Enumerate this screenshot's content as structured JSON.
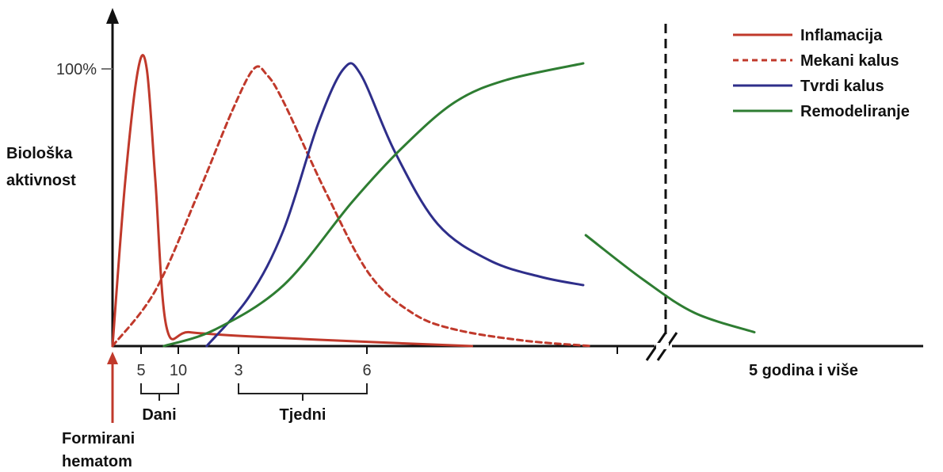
{
  "chart_data": {
    "type": "line",
    "title": "",
    "ylabel_lines": [
      "Biološka",
      "aktivnost"
    ],
    "y_max_label": "100%",
    "ylim": [
      0,
      100
    ],
    "x_ticks_days": [
      "5",
      "10"
    ],
    "x_ticks_weeks": [
      "3",
      "6"
    ],
    "bracket_days_label": "Dani",
    "bracket_weeks_label": "Tjedni",
    "x_end_label": "5 godina i više",
    "start_marker_lines": [
      "Formirani",
      "hematom"
    ],
    "axis_break": true,
    "legend_position": "top-right",
    "series": [
      {
        "name": "Inflamacija",
        "color": "#c0392b",
        "dash": false,
        "points": [
          [
            0,
            0
          ],
          [
            1.5,
            60
          ],
          [
            3,
            100
          ],
          [
            4,
            100
          ],
          [
            5,
            60
          ],
          [
            6.3,
            7
          ],
          [
            9,
            5
          ],
          [
            16,
            3.5
          ],
          [
            30,
            1.5
          ],
          [
            42,
            0
          ]
        ]
      },
      {
        "name": "Mekani kalus",
        "color": "#c0392b",
        "dash": true,
        "points": [
          [
            0,
            0
          ],
          [
            5,
            20
          ],
          [
            10,
            55
          ],
          [
            14,
            85
          ],
          [
            16.5,
            100
          ],
          [
            18,
            98
          ],
          [
            20,
            88
          ],
          [
            25,
            55
          ],
          [
            30,
            26
          ],
          [
            35,
            12
          ],
          [
            40,
            6
          ],
          [
            48,
            2
          ],
          [
            56,
            0
          ]
        ]
      },
      {
        "name": "Tvrdi kalus",
        "color": "#2e2e8a",
        "dash": false,
        "points": [
          [
            11,
            0
          ],
          [
            16,
            18
          ],
          [
            20,
            42
          ],
          [
            24,
            80
          ],
          [
            27,
            100
          ],
          [
            29,
            98
          ],
          [
            33,
            70
          ],
          [
            38,
            44
          ],
          [
            44,
            31
          ],
          [
            50,
            25
          ],
          [
            55,
            22
          ]
        ]
      },
      {
        "name": "Remodeliranje",
        "color": "#2e7d32",
        "dash": false,
        "points": [
          [
            6,
            0
          ],
          [
            12,
            6
          ],
          [
            20,
            22
          ],
          [
            28,
            52
          ],
          [
            34,
            72
          ],
          [
            40,
            88
          ],
          [
            46,
            96
          ],
          [
            55,
            102
          ],
          [
            55.3,
            40
          ],
          [
            62,
            24
          ],
          [
            68,
            12
          ],
          [
            75,
            5
          ]
        ]
      }
    ]
  }
}
